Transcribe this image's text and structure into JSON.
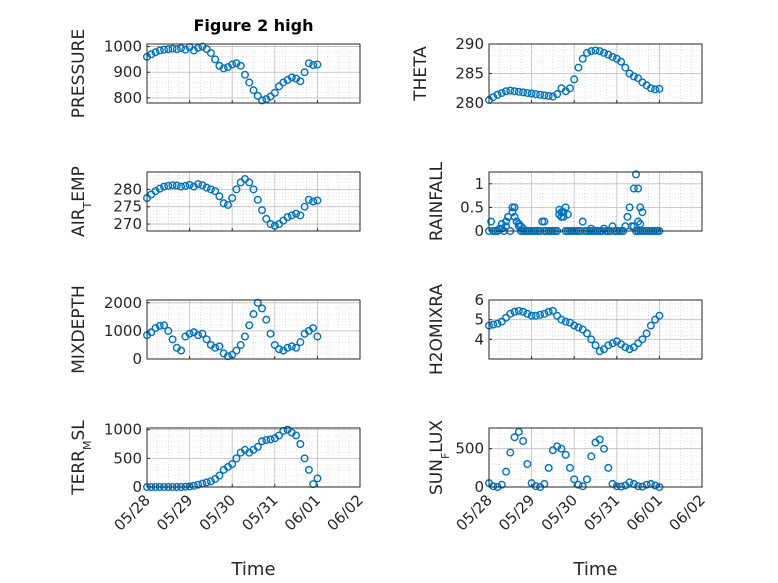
{
  "figure": {
    "title": "Figure 2 high",
    "xlabel": "Time",
    "x_ticks": [
      "05/28",
      "05/29",
      "05/30",
      "05/31",
      "06/01",
      "06/02"
    ],
    "marker_color": "#0072BD"
  },
  "chart_data": [
    {
      "type": "scatter",
      "ylabel": "PRESSURE",
      "title": "Figure 2 high",
      "xlim": [
        0,
        5
      ],
      "ylim": [
        780,
        1010
      ],
      "yticks": [
        800,
        900,
        1000
      ],
      "grid": true,
      "series": [
        {
          "x": [
            0,
            0.1,
            0.2,
            0.3,
            0.4,
            0.5,
            0.6,
            0.7,
            0.8,
            0.9,
            1.0,
            1.1,
            1.2,
            1.3,
            1.4,
            1.5,
            1.6,
            1.7,
            1.8,
            1.9,
            2.0,
            2.1,
            2.2,
            2.3,
            2.4,
            2.5,
            2.6,
            2.7,
            2.8,
            2.9,
            3.0,
            3.1,
            3.2,
            3.3,
            3.4,
            3.5,
            3.6,
            3.7,
            3.8,
            3.9,
            4.0
          ],
          "y": [
            960,
            970,
            978,
            985,
            988,
            990,
            992,
            990,
            994,
            988,
            998,
            985,
            995,
            1000,
            990,
            975,
            950,
            925,
            915,
            920,
            930,
            935,
            925,
            890,
            860,
            830,
            808,
            790,
            795,
            805,
            820,
            845,
            860,
            870,
            880,
            875,
            865,
            900,
            935,
            928,
            930
          ]
        }
      ]
    },
    {
      "type": "scatter",
      "ylabel": "THETA",
      "xlim": [
        0,
        5
      ],
      "ylim": [
        280,
        290
      ],
      "yticks": [
        280,
        285,
        290
      ],
      "grid": true,
      "series": [
        {
          "x": [
            0,
            0.1,
            0.2,
            0.3,
            0.4,
            0.5,
            0.6,
            0.7,
            0.8,
            0.9,
            1.0,
            1.1,
            1.2,
            1.3,
            1.4,
            1.5,
            1.6,
            1.7,
            1.8,
            1.9,
            2.0,
            2.1,
            2.2,
            2.3,
            2.4,
            2.5,
            2.6,
            2.7,
            2.8,
            2.9,
            3.0,
            3.1,
            3.2,
            3.3,
            3.4,
            3.5,
            3.6,
            3.7,
            3.8,
            3.9,
            4.0
          ],
          "y": [
            280.5,
            281,
            281.4,
            281.7,
            282,
            282.1,
            282,
            281.9,
            281.8,
            281.7,
            281.6,
            281.5,
            281.4,
            281.3,
            281.2,
            281.1,
            281.5,
            282.5,
            282,
            282.5,
            284,
            286,
            287.5,
            288.5,
            288.8,
            288.9,
            288.8,
            288.5,
            288.2,
            287.8,
            287.5,
            287,
            286,
            285,
            284.5,
            284.2,
            283.5,
            283,
            282.5,
            282.3,
            282.4
          ]
        }
      ]
    },
    {
      "type": "scatter",
      "ylabel": "AIR_TEMP",
      "xlim": [
        0,
        5
      ],
      "ylim": [
        268,
        285
      ],
      "yticks": [
        270,
        275,
        280
      ],
      "grid": true,
      "series": [
        {
          "x": [
            0,
            0.1,
            0.2,
            0.3,
            0.4,
            0.5,
            0.6,
            0.7,
            0.8,
            0.9,
            1.0,
            1.1,
            1.2,
            1.3,
            1.4,
            1.5,
            1.6,
            1.7,
            1.8,
            1.9,
            2.0,
            2.1,
            2.2,
            2.3,
            2.4,
            2.5,
            2.6,
            2.7,
            2.8,
            2.9,
            3.0,
            3.1,
            3.2,
            3.3,
            3.4,
            3.5,
            3.6,
            3.7,
            3.8,
            3.9,
            4.0
          ],
          "y": [
            277.5,
            278.5,
            279.5,
            280.2,
            280.8,
            281,
            281.2,
            281.1,
            280.8,
            281,
            281.3,
            280.8,
            281.5,
            281.2,
            280.5,
            280,
            279.5,
            278,
            276,
            275.5,
            277.5,
            280,
            282,
            283,
            282,
            280,
            277,
            274,
            271.5,
            270,
            269.5,
            270,
            271,
            272,
            272.5,
            273,
            272.5,
            275,
            277,
            276.5,
            276.8
          ]
        }
      ]
    },
    {
      "type": "scatter",
      "ylabel": "RAINFALL",
      "xlim": [
        0,
        5
      ],
      "ylim": [
        0,
        1.25
      ],
      "yticks": [
        0,
        0.5,
        1
      ],
      "grid": true,
      "series": [
        {
          "x": [
            0,
            0.05,
            0.1,
            0.15,
            0.2,
            0.25,
            0.3,
            0.35,
            0.4,
            0.45,
            0.5,
            0.55,
            0.6,
            0.65,
            0.7,
            0.75,
            0.8,
            0.85,
            0.9,
            0.95,
            1.0,
            1.05,
            1.1,
            1.15,
            1.2,
            1.25,
            1.3,
            1.35,
            1.4,
            1.45,
            1.5,
            1.55,
            1.6,
            1.65,
            1.7,
            1.75,
            1.8,
            1.85,
            1.9,
            1.95,
            2.0,
            2.05,
            2.1,
            2.15,
            2.2,
            2.25,
            2.3,
            2.35,
            2.4,
            2.45,
            2.5,
            2.55,
            2.6,
            2.65,
            2.7,
            2.75,
            2.8,
            2.85,
            2.9,
            2.95,
            3.0,
            3.05,
            3.1,
            3.15,
            3.2,
            3.25,
            3.3,
            3.35,
            3.4,
            3.45,
            3.5,
            3.55,
            3.6,
            3.65,
            3.7,
            3.75,
            3.8,
            3.85,
            3.9,
            3.95,
            4.0,
            0.55,
            0.6,
            0.65,
            0.7,
            0.75,
            0.8,
            1.3,
            1.65,
            1.7,
            1.75,
            1.8,
            1.85,
            2.4,
            3.4,
            3.45,
            3.5,
            3.55,
            3.6,
            3.5,
            3.55,
            0.3,
            0.4,
            0.45
          ],
          "y": [
            0,
            0.2,
            0,
            0,
            0,
            0.05,
            0.15,
            0,
            0.2,
            0.3,
            0,
            0.5,
            0.5,
            0.2,
            0.1,
            0,
            0,
            0,
            0,
            0,
            0,
            0,
            0,
            0,
            0,
            0.2,
            0,
            0,
            0,
            0,
            0,
            0,
            0,
            0.35,
            0.4,
            0.3,
            0,
            0,
            0,
            0,
            0,
            0,
            0,
            0,
            0.2,
            0,
            0,
            0,
            0,
            0,
            0,
            0,
            0,
            0,
            0.05,
            0,
            0,
            0,
            0.1,
            0,
            0,
            0,
            0,
            0,
            0.1,
            0.3,
            0.5,
            0.1,
            0.1,
            0,
            0,
            0,
            0,
            0,
            0,
            0,
            0,
            0,
            0,
            0,
            0,
            0.4,
            0.3,
            0.2,
            0.15,
            0.1,
            0.05,
            0.2,
            0.45,
            0.3,
            0.4,
            0.5,
            0.35,
            0.05,
            0.9,
            1.2,
            0.9,
            0.5,
            0.4,
            0.2,
            0.15,
            0.05,
            0.1,
            0.3
          ]
        }
      ]
    },
    {
      "type": "scatter",
      "ylabel": "MIXDEPTH",
      "xlim": [
        0,
        5
      ],
      "ylim": [
        0,
        2100
      ],
      "yticks": [
        0,
        1000,
        2000
      ],
      "grid": true,
      "series": [
        {
          "x": [
            0,
            0.1,
            0.2,
            0.3,
            0.4,
            0.5,
            0.6,
            0.7,
            0.8,
            0.9,
            1.0,
            1.1,
            1.2,
            1.3,
            1.4,
            1.5,
            1.6,
            1.7,
            1.8,
            1.9,
            2.0,
            2.1,
            2.2,
            2.3,
            2.4,
            2.5,
            2.6,
            2.7,
            2.8,
            2.9,
            3.0,
            3.1,
            3.2,
            3.3,
            3.4,
            3.5,
            3.6,
            3.7,
            3.8,
            3.9,
            4.0
          ],
          "y": [
            850,
            950,
            1100,
            1180,
            1200,
            1000,
            700,
            400,
            300,
            800,
            900,
            950,
            850,
            900,
            700,
            500,
            400,
            450,
            200,
            100,
            150,
            300,
            500,
            800,
            1200,
            1600,
            2000,
            1800,
            1400,
            900,
            500,
            350,
            300,
            400,
            450,
            400,
            600,
            900,
            1000,
            1100,
            800
          ]
        }
      ]
    },
    {
      "type": "scatter",
      "ylabel": "H2OMIXRA",
      "xlim": [
        0,
        5
      ],
      "ylim": [
        3,
        6
      ],
      "yticks": [
        4,
        5,
        6
      ],
      "grid": true,
      "series": [
        {
          "x": [
            0,
            0.1,
            0.2,
            0.3,
            0.4,
            0.5,
            0.6,
            0.7,
            0.8,
            0.9,
            1.0,
            1.1,
            1.2,
            1.3,
            1.4,
            1.5,
            1.6,
            1.7,
            1.8,
            1.9,
            2.0,
            2.1,
            2.2,
            2.3,
            2.4,
            2.5,
            2.6,
            2.7,
            2.8,
            2.9,
            3.0,
            3.1,
            3.2,
            3.3,
            3.4,
            3.5,
            3.6,
            3.7,
            3.8,
            3.9,
            4.0
          ],
          "y": [
            4.7,
            4.75,
            4.8,
            4.9,
            5.1,
            5.3,
            5.4,
            5.45,
            5.4,
            5.3,
            5.2,
            5.2,
            5.25,
            5.3,
            5.4,
            5.45,
            5.2,
            5,
            4.9,
            4.85,
            4.7,
            4.6,
            4.5,
            4.3,
            4.0,
            3.7,
            3.4,
            3.5,
            3.7,
            3.8,
            3.9,
            3.75,
            3.6,
            3.5,
            3.6,
            3.8,
            4.0,
            4.3,
            4.7,
            5.0,
            5.2
          ]
        }
      ]
    },
    {
      "type": "scatter",
      "ylabel": "TERR_MSL",
      "xlim": [
        0,
        5
      ],
      "ylim": [
        0,
        1030
      ],
      "yticks": [
        0,
        500,
        1000
      ],
      "grid": true,
      "series": [
        {
          "x": [
            0,
            0.1,
            0.2,
            0.3,
            0.4,
            0.5,
            0.6,
            0.7,
            0.8,
            0.9,
            1.0,
            1.1,
            1.2,
            1.3,
            1.4,
            1.5,
            1.6,
            1.7,
            1.8,
            1.9,
            2.0,
            2.1,
            2.2,
            2.3,
            2.4,
            2.5,
            2.6,
            2.7,
            2.8,
            2.9,
            3.0,
            3.1,
            3.2,
            3.3,
            3.4,
            3.5,
            3.6,
            3.7,
            3.8,
            3.9,
            4.0
          ],
          "y": [
            0,
            0,
            0,
            0,
            0,
            0,
            0,
            0,
            0,
            5,
            10,
            20,
            40,
            60,
            80,
            100,
            140,
            200,
            300,
            350,
            400,
            500,
            600,
            650,
            600,
            650,
            700,
            800,
            820,
            830,
            850,
            900,
            980,
            1000,
            950,
            900,
            750,
            500,
            300,
            50,
            150
          ]
        }
      ]
    },
    {
      "type": "scatter",
      "ylabel": "SUN_FLUX",
      "xlim": [
        0,
        5
      ],
      "ylim": [
        0,
        770
      ],
      "yticks": [
        0,
        500
      ],
      "grid": true,
      "series": [
        {
          "x": [
            0,
            0.1,
            0.2,
            0.3,
            0.4,
            0.5,
            0.6,
            0.7,
            0.8,
            0.9,
            1.0,
            1.1,
            1.2,
            1.3,
            1.4,
            1.5,
            1.6,
            1.7,
            1.8,
            1.9,
            2.0,
            2.1,
            2.2,
            2.3,
            2.4,
            2.5,
            2.6,
            2.7,
            2.8,
            2.9,
            3.0,
            3.1,
            3.2,
            3.3,
            3.4,
            3.5,
            3.6,
            3.7,
            3.8,
            3.9,
            4.0
          ],
          "y": [
            50,
            10,
            0,
            30,
            200,
            450,
            650,
            720,
            600,
            300,
            50,
            10,
            0,
            40,
            250,
            480,
            530,
            500,
            420,
            250,
            100,
            30,
            10,
            100,
            400,
            580,
            620,
            500,
            250,
            40,
            10,
            5,
            20,
            60,
            40,
            10,
            5,
            30,
            40,
            20,
            0
          ]
        }
      ]
    }
  ]
}
